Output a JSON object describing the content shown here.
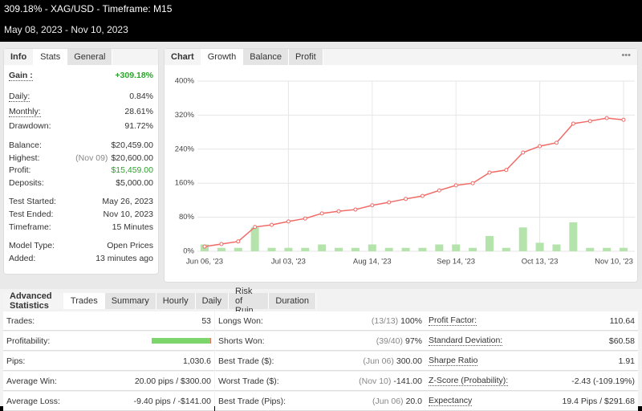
{
  "header": {
    "title": "309.18% - XAG/USD - Timeframe: M15",
    "period": "May 08, 2023 - Nov 10, 2023"
  },
  "info": {
    "tabs": [
      "Info",
      "Stats",
      "General"
    ],
    "rows": [
      {
        "label": "Gain :",
        "value": "+309.18%"
      },
      {
        "label": "Daily:",
        "value": "0.84%"
      },
      {
        "label": "Monthly:",
        "value": "28.61%"
      },
      {
        "label": "Drawdown:",
        "value": "91.72%"
      },
      {
        "label": "Balance:",
        "value": "$20,459.00"
      },
      {
        "label": "Highest:",
        "note": "(Nov 09)",
        "value": "$20,600.00"
      },
      {
        "label": "Profit:",
        "value": "$15,459.00"
      },
      {
        "label": "Deposits:",
        "value": "$5,000.00"
      },
      {
        "label": "Test Started:",
        "value": "May 26, 2023"
      },
      {
        "label": "Test Ended:",
        "value": "Nov 10, 2023"
      },
      {
        "label": "Timeframe:",
        "value": "15 Minutes"
      },
      {
        "label": "Model Type:",
        "value": "Open Prices"
      },
      {
        "label": "Added:",
        "value": "13 minutes ago"
      }
    ]
  },
  "chart_panel": {
    "label": "Chart",
    "tabs": [
      "Growth",
      "Balance",
      "Profit"
    ]
  },
  "chart_data": {
    "type": "line",
    "categories": [
      "Jun 06, '23",
      null,
      null,
      null,
      null,
      "Jul 03, '23",
      null,
      null,
      null,
      null,
      "Aug 14, '23",
      null,
      null,
      null,
      null,
      "Sep 14, '23",
      null,
      null,
      null,
      null,
      "Oct 13, '23",
      null,
      null,
      null,
      null,
      "Nov 10, '23"
    ],
    "series": [
      {
        "type": "bar",
        "axis": "y2",
        "color": "#b4e4ab",
        "values": [
          4,
          2,
          2,
          14,
          2,
          2,
          2,
          4,
          2,
          2,
          4,
          2,
          2,
          2,
          4,
          4,
          2,
          9,
          2,
          14,
          5,
          4,
          17,
          2,
          2,
          2
        ]
      },
      {
        "type": "line",
        "color": "#f06a66",
        "values": [
          11,
          17,
          23,
          57,
          62,
          70,
          77,
          89,
          94,
          98,
          108,
          115,
          123,
          130,
          143,
          155,
          160,
          185,
          191,
          232,
          247,
          255,
          300,
          306,
          313,
          309
        ]
      }
    ],
    "ylim": [
      0,
      400
    ],
    "yticks": [
      {
        "value": 0,
        "label": "0%"
      },
      {
        "value": 80,
        "label": "80%"
      },
      {
        "value": 160,
        "label": "160%"
      },
      {
        "value": 240,
        "label": "240%"
      },
      {
        "value": 320,
        "label": "320%"
      },
      {
        "value": 400,
        "label": "400%"
      }
    ],
    "y2lim": [
      0,
      100
    ],
    "grid": true
  },
  "advanced": {
    "label": "Advanced Statistics",
    "tabs": [
      "Trades",
      "Summary",
      "Hourly",
      "Daily",
      "Risk of Ruin",
      "Duration"
    ],
    "rows": [
      [
        {
          "label": "Trades:",
          "value": "53"
        },
        {
          "label": "Longs Won:",
          "note": "(13/13)",
          "value": "100%"
        },
        {
          "label": "Profit Factor:",
          "value": "110.64"
        }
      ],
      [
        {
          "label": "Profitability:",
          "bar": {
            "won": 52,
            "lost": 1
          }
        },
        {
          "label": "Shorts Won:",
          "note": "(39/40)",
          "value": "97%"
        },
        {
          "label": "Standard Deviation:",
          "value": "$60.58"
        }
      ],
      [
        {
          "label": "Pips:",
          "value": "1,030.6"
        },
        {
          "label": "Best Trade ($):",
          "note": "(Jun 06)",
          "value": "300.00"
        },
        {
          "label": "Sharpe Ratio",
          "value": "1.91"
        }
      ],
      [
        {
          "label": "Average Win:",
          "value": "20.00 pips / $300.00"
        },
        {
          "label": "Worst Trade ($):",
          "note": "(Nov 10)",
          "value": "-141.00"
        },
        {
          "label": "Z-Score (Probability):",
          "value": "-2.43 (-109.19%)"
        }
      ],
      [
        {
          "label": "Average Loss:",
          "value": "-9.40 pips / -$141.00"
        },
        {
          "label": "Best Trade (Pips):",
          "note": "(Jun 06)",
          "value": "20.0"
        },
        {
          "label": "Expectancy",
          "value": "19.4 Pips / $291.68"
        }
      ]
    ]
  }
}
